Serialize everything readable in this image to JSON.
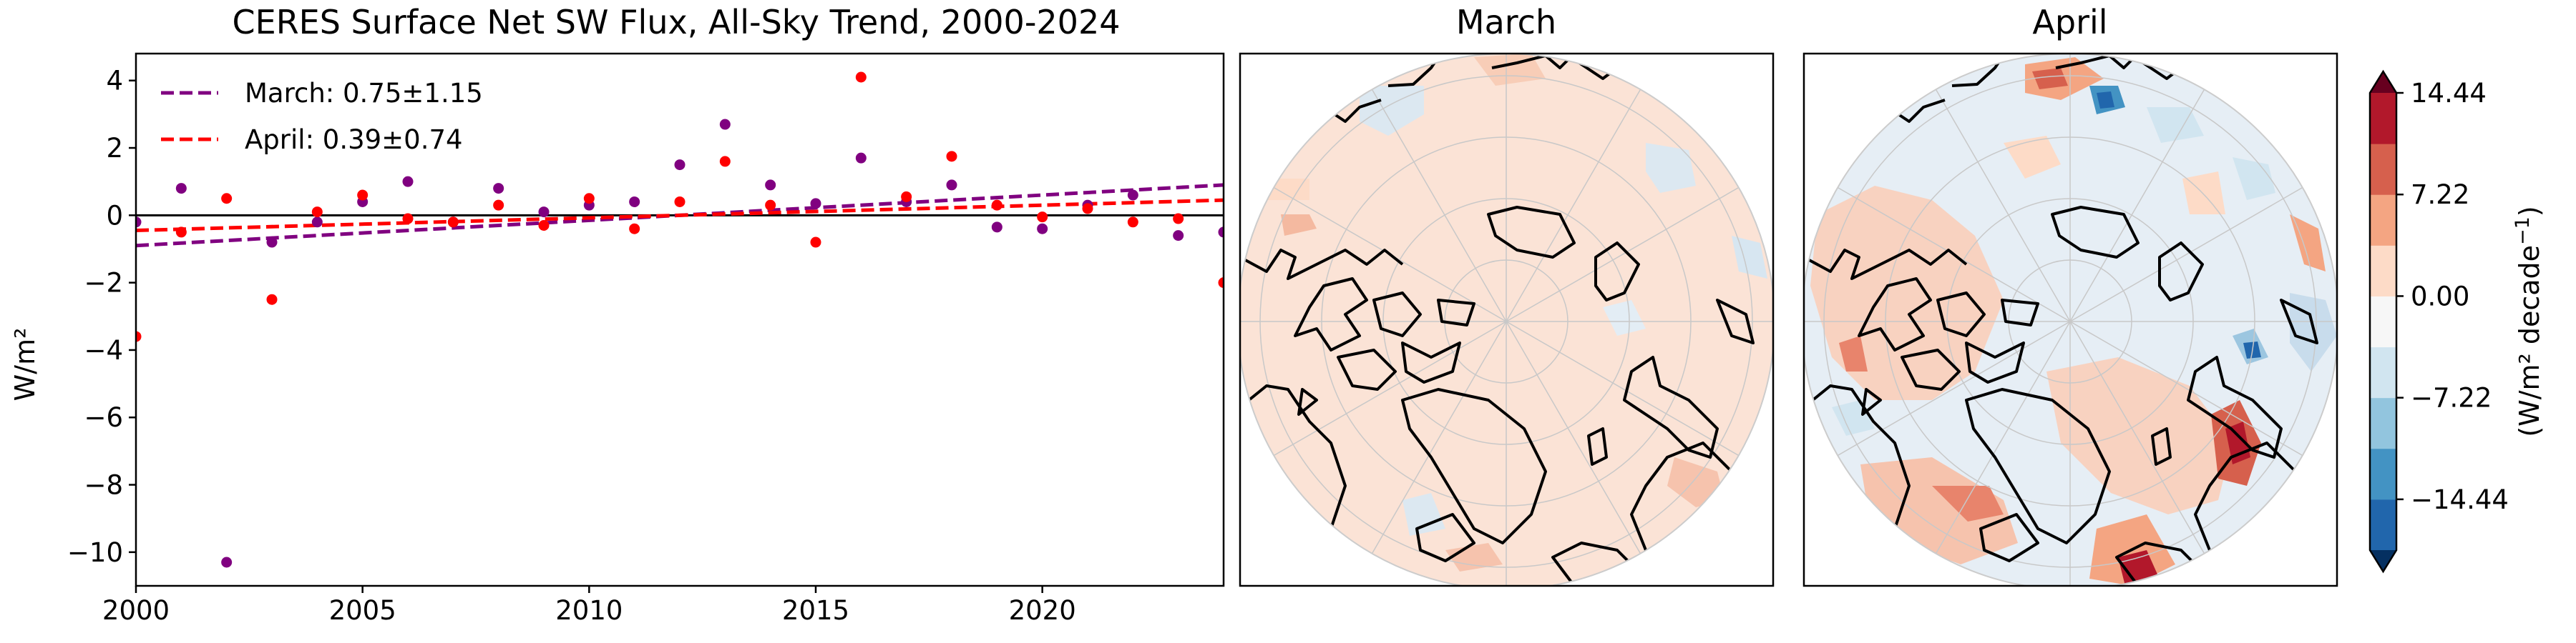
{
  "chart_data": [
    {
      "type": "scatter",
      "title": "CERES Surface Net SW Flux, All-Sky Trend, 2000-2024",
      "xlabel": "",
      "ylabel": "W/m²",
      "xlim": [
        2000,
        2024
      ],
      "ylim": [
        -11,
        4.8
      ],
      "xticks": [
        2000,
        2005,
        2010,
        2015,
        2020
      ],
      "yticks": [
        -10,
        -8,
        -6,
        -4,
        -2,
        0,
        2,
        4
      ],
      "zero_line": 0,
      "grid": false,
      "legend_position": "top-left",
      "series": [
        {
          "name": "March: 0.75±1.15",
          "color": "#800080",
          "line_style": "dashed",
          "trend_line": {
            "start": [
              2000,
              -0.9
            ],
            "end": [
              2024,
              0.9
            ]
          },
          "points": [
            [
              2000,
              -0.2
            ],
            [
              2001,
              0.8
            ],
            [
              2002,
              -10.3
            ],
            [
              2003,
              -0.8
            ],
            [
              2004,
              -0.2
            ],
            [
              2005,
              0.4
            ],
            [
              2006,
              1.0
            ],
            [
              2007,
              -0.2
            ],
            [
              2008,
              0.8
            ],
            [
              2009,
              0.1
            ],
            [
              2010,
              0.3
            ],
            [
              2011,
              0.4
            ],
            [
              2012,
              1.5
            ],
            [
              2013,
              2.7
            ],
            [
              2014,
              0.9
            ],
            [
              2015,
              0.35
            ],
            [
              2016,
              1.7
            ],
            [
              2017,
              0.4
            ],
            [
              2018,
              0.9
            ],
            [
              2019,
              -0.35
            ],
            [
              2020,
              -0.4
            ],
            [
              2021,
              0.3
            ],
            [
              2022,
              0.6
            ],
            [
              2023,
              -0.6
            ],
            [
              2024,
              -0.5
            ]
          ]
        },
        {
          "name": "April: 0.39±0.74",
          "color": "#ff0000",
          "line_style": "dashed",
          "trend_line": {
            "start": [
              2000,
              -0.45
            ],
            "end": [
              2024,
              0.45
            ]
          },
          "points": [
            [
              2000,
              -3.6
            ],
            [
              2001,
              -0.5
            ],
            [
              2002,
              0.5
            ],
            [
              2003,
              -2.5
            ],
            [
              2004,
              0.1
            ],
            [
              2005,
              0.6
            ],
            [
              2006,
              -0.1
            ],
            [
              2007,
              -0.2
            ],
            [
              2008,
              0.3
            ],
            [
              2009,
              -0.3
            ],
            [
              2010,
              0.5
            ],
            [
              2011,
              -0.4
            ],
            [
              2012,
              0.4
            ],
            [
              2013,
              1.6
            ],
            [
              2014,
              0.3
            ],
            [
              2015,
              -0.8
            ],
            [
              2016,
              4.1
            ],
            [
              2017,
              0.55
            ],
            [
              2018,
              1.75
            ],
            [
              2019,
              0.3
            ],
            [
              2020,
              -0.05
            ],
            [
              2021,
              0.2
            ],
            [
              2022,
              -0.2
            ],
            [
              2023,
              -0.1
            ],
            [
              2024,
              -2.0
            ]
          ]
        }
      ]
    },
    {
      "type": "heatmap",
      "title": "March",
      "projection": "north polar stereographic",
      "colormap": "RdBu_r",
      "pattern": "mostly light positive (pale red) with a few pale blue patches"
    },
    {
      "type": "heatmap",
      "title": "April",
      "projection": "north polar stereographic",
      "colormap": "RdBu_r",
      "pattern": "mixed weak positive and negative trends with strong positive trend near Hudson Bay, south Greenland and Scandinavia"
    }
  ],
  "colorbar": {
    "label": "(W/m² decade",
    "label_exponent": "−1",
    "label_close": ")",
    "ticks": [
      "14.44",
      "7.22",
      "0.00",
      "−7.22",
      "−14.44"
    ],
    "colors": [
      "#053061",
      "#2166ac",
      "#4393c3",
      "#92c5de",
      "#d1e5f0",
      "#f7f7f7",
      "#fddbc7",
      "#f4a582",
      "#d6604d",
      "#b2182b",
      "#67001f"
    ]
  }
}
